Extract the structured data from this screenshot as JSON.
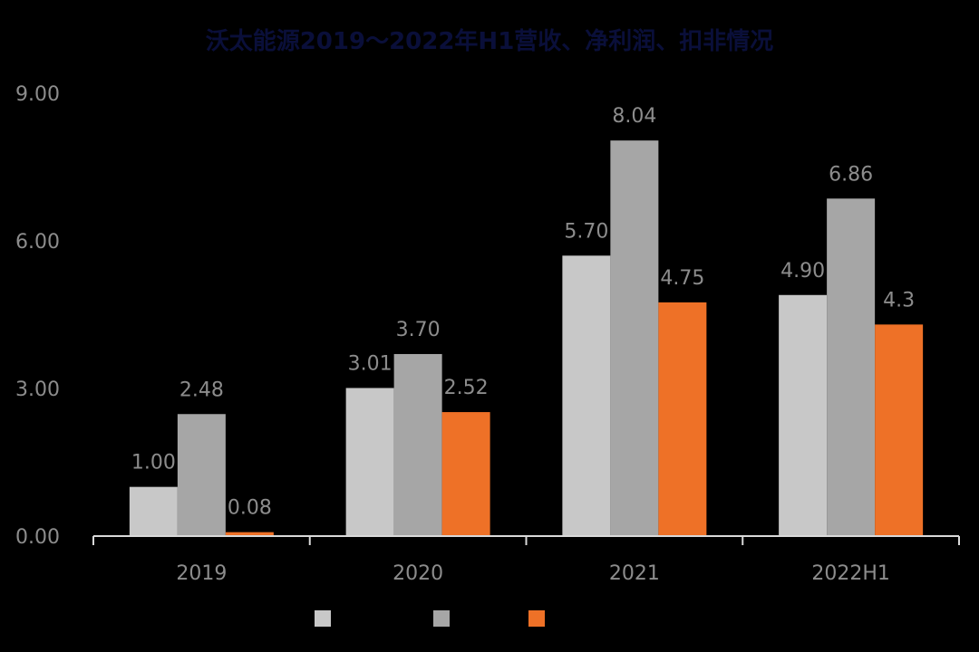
{
  "chart_data": {
    "type": "bar",
    "title": "沃太能源2019～2022年H1营收、净利润、扣非情况",
    "categories": [
      "2019",
      "2020",
      "2021",
      "2022H1"
    ],
    "ylim": [
      0,
      9
    ],
    "yticks": [
      "0.00",
      "3.00",
      "6.00",
      "9.00"
    ],
    "ytick_values": [
      0,
      3,
      6,
      9
    ],
    "grid": false,
    "legend_position": "bottom",
    "series": [
      {
        "values": [
          1.0,
          3.01,
          5.7,
          4.9
        ],
        "labels": [
          "1.00",
          "3.01",
          "5.70",
          "4.90"
        ],
        "color": "#c8c8c8"
      },
      {
        "values": [
          2.48,
          3.7,
          8.04,
          6.86
        ],
        "labels": [
          "2.48",
          "3.70",
          "8.04",
          "6.86"
        ],
        "color": "#a6a6a6"
      },
      {
        "values": [
          0.08,
          2.52,
          4.75,
          4.3
        ],
        "labels": [
          "0.08",
          "2.52",
          "4.75",
          "4.3"
        ],
        "color": "#ee7127"
      }
    ]
  }
}
